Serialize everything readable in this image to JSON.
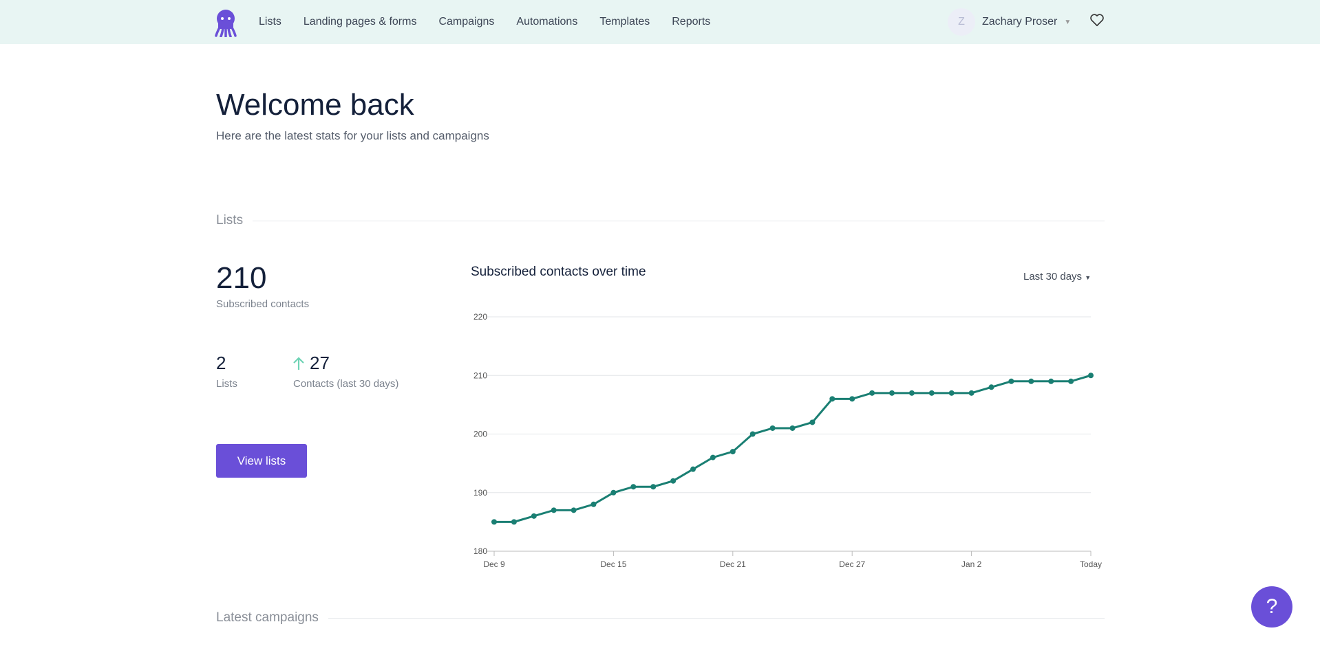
{
  "nav": {
    "links": [
      "Lists",
      "Landing pages & forms",
      "Campaigns",
      "Automations",
      "Templates",
      "Reports"
    ],
    "user_initial": "Z",
    "user_name": "Zachary Proser"
  },
  "header": {
    "title": "Welcome back",
    "subtitle": "Here are the latest stats for your lists and campaigns"
  },
  "lists": {
    "section": "Lists",
    "subscribed": "210",
    "subscribed_label": "Subscribed contacts",
    "lists_count": "2",
    "lists_label": "Lists",
    "contacts_30": "27",
    "contacts_30_label": "Contacts (last 30 days)",
    "view_button": "View lists"
  },
  "chart_range": "Last 30 days",
  "chart_data": {
    "type": "line",
    "title": "Subscribed contacts over time",
    "ylim": [
      180,
      220
    ],
    "yticks": [
      180,
      190,
      200,
      210,
      220
    ],
    "xticks": [
      "Dec 9",
      "Dec 15",
      "Dec 21",
      "Dec 27",
      "Jan 2",
      "Today"
    ],
    "xtick_index": [
      0,
      6,
      12,
      18,
      24,
      30
    ],
    "values": [
      185,
      185,
      186,
      187,
      187,
      188,
      190,
      191,
      191,
      192,
      194,
      196,
      197,
      200,
      201,
      201,
      202,
      206,
      206,
      207,
      207,
      207,
      207,
      207,
      207,
      208,
      209,
      209,
      209,
      209,
      210
    ],
    "color": "#1a7f73",
    "grid": true
  },
  "campaigns": {
    "section": "Latest campaigns"
  },
  "help": "?"
}
